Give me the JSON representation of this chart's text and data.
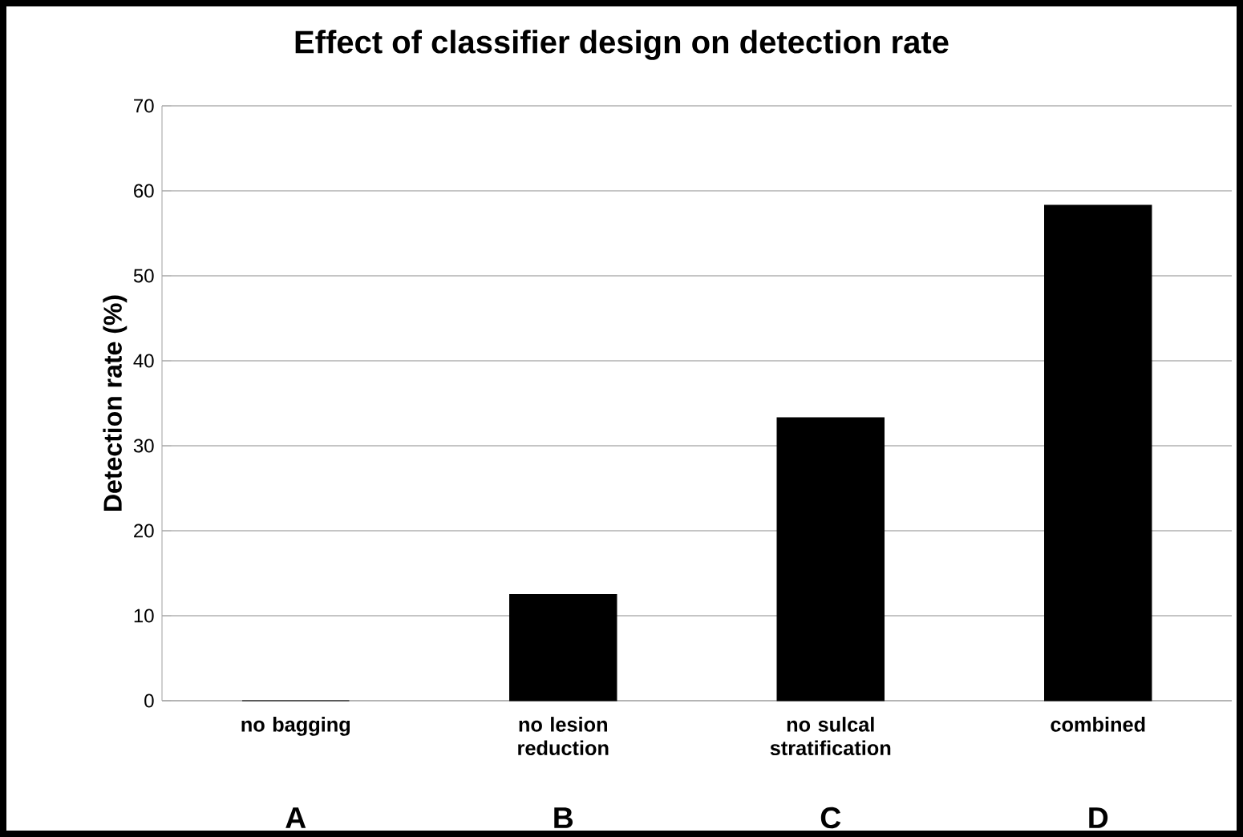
{
  "chart_data": {
    "type": "bar",
    "title": "Effect of classifier design on detection rate",
    "ylabel": "Detection rate (%)",
    "categories": [
      "no bagging",
      "no lesion reduction",
      "no sulcal stratification",
      "combined"
    ],
    "values": [
      0,
      12.5,
      33.3,
      58.3
    ],
    "color": "#000000",
    "ylim": [
      0,
      70
    ],
    "yticks": [
      0,
      10,
      20,
      30,
      40,
      50,
      60,
      70
    ],
    "grid": "y",
    "annotations": [
      "A",
      "B",
      "C",
      "D"
    ]
  }
}
